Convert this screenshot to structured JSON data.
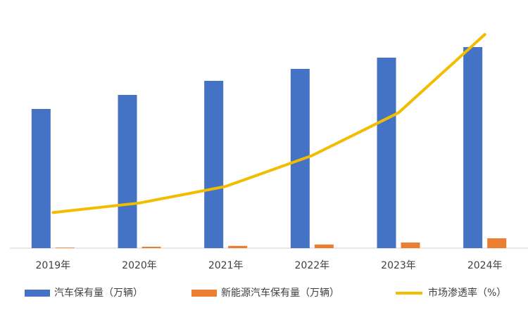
{
  "chart_data": {
    "type": "bar-line",
    "categories": [
      "2019年",
      "2020年",
      "2021年",
      "2022年",
      "2023年",
      "2024年"
    ],
    "series": [
      {
        "name": "汽车保有量（万辆）",
        "color": "#4472c4",
        "type": "bar",
        "values": [
          24750,
          27250,
          29750,
          31875,
          33875,
          35750
        ]
      },
      {
        "name": "新能源汽车保有量（万辆）",
        "color": "#ed7d31",
        "type": "bar",
        "values": [
          100,
          250,
          400,
          650,
          1000,
          1750
        ]
      },
      {
        "name": "市场渗透率（%）",
        "color": "#f2bc00",
        "type": "line",
        "axis": "y2",
        "values": [
          1.5,
          1.9,
          2.6,
          3.9,
          5.7,
          9.0
        ]
      }
    ],
    "ylim": [
      0,
      38000
    ],
    "y2lim": [
      0,
      9
    ],
    "legend": "bottom"
  }
}
